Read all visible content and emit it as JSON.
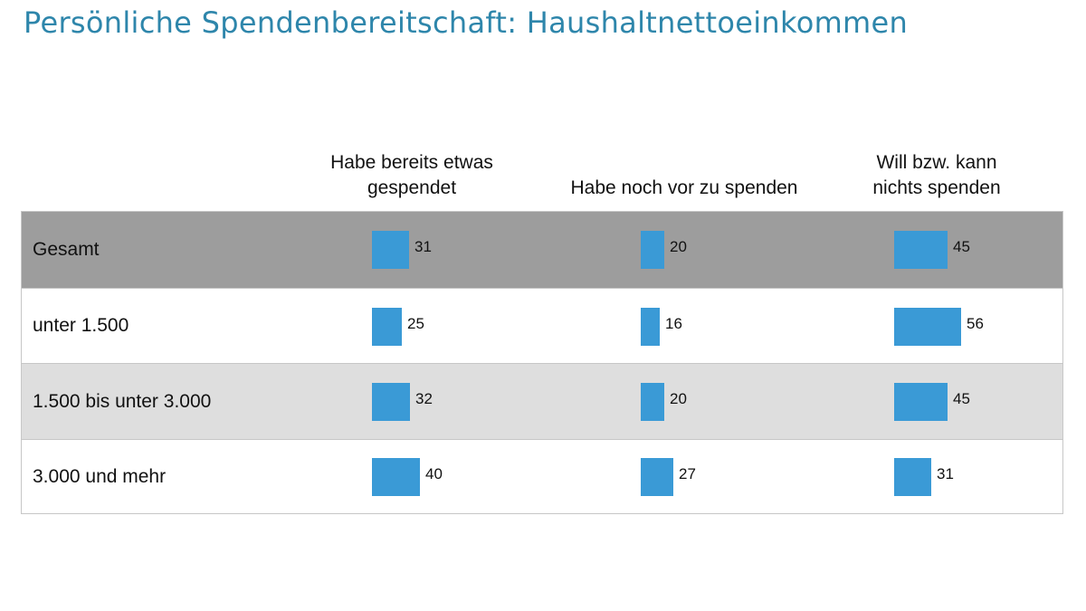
{
  "title": "Persönliche Spendenbereitschaft: Haushaltnettoeinkommen",
  "chart_data": {
    "type": "table",
    "columns": [
      {
        "label_lines": [
          "Habe bereits etwas",
          "gespendet"
        ]
      },
      {
        "label_lines": [
          "Habe noch vor zu spenden"
        ]
      },
      {
        "label_lines": [
          "Will bzw. kann",
          "nichts spenden"
        ]
      }
    ],
    "rows": [
      {
        "label": "Gesamt",
        "values": [
          31,
          20,
          45
        ],
        "shade": "#9d9d9d"
      },
      {
        "label": "unter 1.500",
        "values": [
          25,
          16,
          56
        ],
        "shade": "#ffffff"
      },
      {
        "label": "1.500 bis unter 3.000",
        "values": [
          32,
          20,
          45
        ],
        "shade": "#dedede"
      },
      {
        "label": "3.000 und mehr",
        "values": [
          40,
          27,
          31
        ],
        "shade": "#ffffff"
      }
    ],
    "bar_color": "#3a9ad6",
    "value_max": 100
  }
}
